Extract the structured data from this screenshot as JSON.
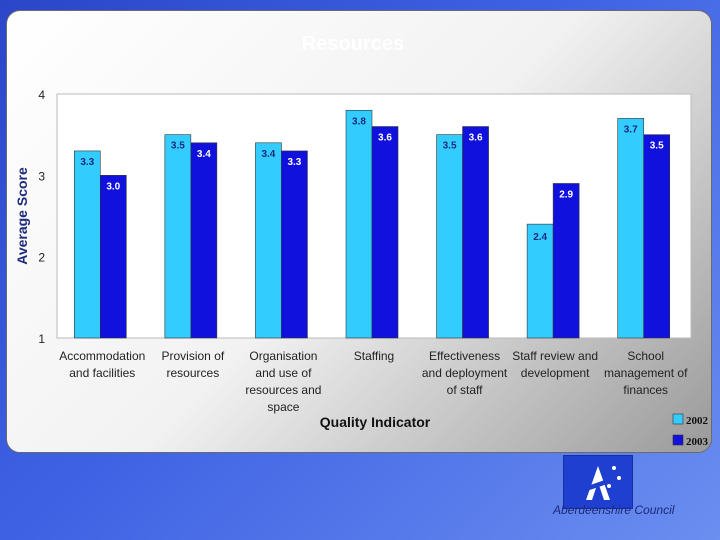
{
  "organization": "Aberdeenshire Council",
  "logo": "aberdeenshire-council-logo",
  "chart_data": {
    "type": "bar",
    "title": "Resources",
    "xlabel": "Quality Indicator",
    "ylabel": "Average Score",
    "ylim": [
      1,
      4
    ],
    "yticks": [
      1,
      2,
      3,
      4
    ],
    "grid": false,
    "legend_position": "bottom-right",
    "categories": [
      [
        "Accommodation",
        "and facilities"
      ],
      [
        "Provision of",
        "resources"
      ],
      [
        "Organisation",
        "and use of",
        "resources and",
        "space"
      ],
      [
        "Staffing"
      ],
      [
        "Effectiveness",
        "and deployment",
        "of staff"
      ],
      [
        "Staff review and",
        "development"
      ],
      [
        "School",
        "management of",
        "finances"
      ]
    ],
    "series": [
      {
        "name": "2002",
        "color": "#33ccff",
        "values": [
          3.3,
          3.5,
          3.4,
          3.8,
          3.5,
          2.4,
          3.7
        ]
      },
      {
        "name": "2003",
        "color": "#1111dd",
        "values": [
          3.0,
          3.4,
          3.3,
          3.6,
          3.6,
          2.9,
          3.5
        ]
      }
    ]
  }
}
